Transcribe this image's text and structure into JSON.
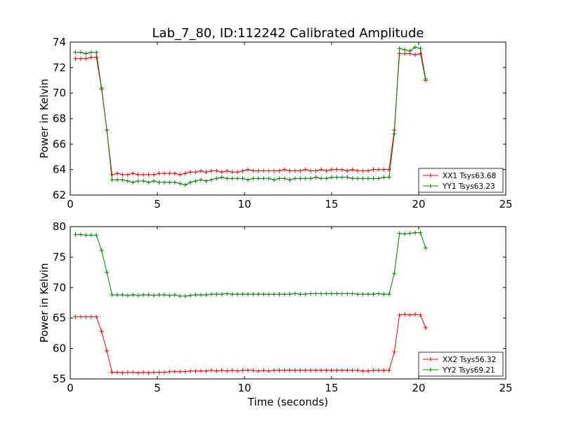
{
  "figure": {
    "title": "Lab_7_80, ID:112242 Calibrated Amplitude",
    "xlabel": "Time (seconds)"
  },
  "chart_data": [
    {
      "type": "line",
      "ylabel": "Power in Kelvin",
      "xlim": [
        0,
        25
      ],
      "ylim": [
        62,
        74
      ],
      "xticks": [
        0,
        5,
        10,
        15,
        20,
        25
      ],
      "yticks": [
        62,
        64,
        66,
        68,
        70,
        72,
        74
      ],
      "legend": "lower-right",
      "series": [
        {
          "name": "XX1 Tsys63.68",
          "color": "#ff0000",
          "x": [
            0.3,
            0.6,
            0.9,
            1.2,
            1.5,
            1.8,
            2.1,
            2.4,
            2.7,
            3.0,
            3.3,
            3.6,
            3.9,
            4.2,
            4.5,
            4.8,
            5.1,
            5.4,
            5.7,
            6.0,
            6.3,
            6.6,
            6.9,
            7.2,
            7.5,
            7.8,
            8.1,
            8.4,
            8.7,
            9.0,
            9.3,
            9.6,
            9.9,
            10.2,
            10.5,
            10.8,
            11.1,
            11.4,
            11.7,
            12.0,
            12.3,
            12.6,
            12.9,
            13.2,
            13.5,
            13.8,
            14.1,
            14.4,
            14.7,
            15.0,
            15.3,
            15.6,
            15.9,
            16.2,
            16.5,
            16.8,
            17.1,
            17.4,
            17.7,
            18.0,
            18.3,
            18.6,
            18.9,
            19.2,
            19.5,
            19.8,
            20.1,
            20.4
          ],
          "values": [
            72.7,
            72.7,
            72.7,
            72.8,
            72.8,
            70.3,
            67.1,
            63.6,
            63.7,
            63.6,
            63.6,
            63.7,
            63.6,
            63.6,
            63.6,
            63.6,
            63.7,
            63.7,
            63.7,
            63.7,
            63.6,
            63.7,
            63.8,
            63.8,
            63.9,
            63.8,
            63.9,
            63.9,
            63.8,
            63.9,
            63.8,
            63.8,
            63.9,
            64.0,
            63.9,
            63.9,
            63.9,
            63.9,
            63.9,
            63.9,
            64.0,
            63.9,
            63.9,
            63.9,
            64.0,
            63.9,
            63.9,
            64.0,
            63.9,
            64.0,
            64.0,
            64.0,
            63.9,
            64.0,
            63.9,
            63.9,
            63.9,
            64.0,
            64.0,
            64.0,
            64.0,
            67.1,
            73.1,
            73.1,
            73.1,
            73.0,
            73.1,
            71.0
          ]
        },
        {
          "name": "YY1 Tsys63.23",
          "color": "#008000",
          "x": [
            0.3,
            0.6,
            0.9,
            1.2,
            1.5,
            1.8,
            2.1,
            2.4,
            2.7,
            3.0,
            3.3,
            3.6,
            3.9,
            4.2,
            4.5,
            4.8,
            5.1,
            5.4,
            5.7,
            6.0,
            6.3,
            6.6,
            6.9,
            7.2,
            7.5,
            7.8,
            8.1,
            8.4,
            8.7,
            9.0,
            9.3,
            9.6,
            9.9,
            10.2,
            10.5,
            10.8,
            11.1,
            11.4,
            11.7,
            12.0,
            12.3,
            12.6,
            12.9,
            13.2,
            13.5,
            13.8,
            14.1,
            14.4,
            14.7,
            15.0,
            15.3,
            15.6,
            15.9,
            16.2,
            16.5,
            16.8,
            17.1,
            17.4,
            17.7,
            18.0,
            18.3,
            18.6,
            18.9,
            19.2,
            19.5,
            19.8,
            20.1,
            20.4
          ],
          "values": [
            73.2,
            73.2,
            73.1,
            73.2,
            73.2,
            70.4,
            67.1,
            63.2,
            63.2,
            63.2,
            63.1,
            63.0,
            63.1,
            63.1,
            63.0,
            63.1,
            63.0,
            63.0,
            63.0,
            63.0,
            62.9,
            62.8,
            63.0,
            63.1,
            63.2,
            63.1,
            63.2,
            63.3,
            63.4,
            63.3,
            63.3,
            63.3,
            63.3,
            63.2,
            63.3,
            63.3,
            63.3,
            63.3,
            63.2,
            63.3,
            63.3,
            63.2,
            63.3,
            63.3,
            63.3,
            63.3,
            63.4,
            63.3,
            63.3,
            63.4,
            63.4,
            63.4,
            63.4,
            63.3,
            63.3,
            63.3,
            63.3,
            63.3,
            63.3,
            63.4,
            63.4,
            66.8,
            73.5,
            73.4,
            73.3,
            73.6,
            73.5,
            71.1
          ]
        }
      ]
    },
    {
      "type": "line",
      "ylabel": "Power in Kelvin",
      "xlim": [
        0,
        25
      ],
      "ylim": [
        55,
        80
      ],
      "xticks": [
        0,
        5,
        10,
        15,
        20,
        25
      ],
      "yticks": [
        55,
        60,
        65,
        70,
        75,
        80
      ],
      "legend": "lower-right",
      "series": [
        {
          "name": "XX2 Tsys56.32",
          "color": "#ff0000",
          "x": [
            0.3,
            0.6,
            0.9,
            1.2,
            1.5,
            1.8,
            2.1,
            2.4,
            2.7,
            3.0,
            3.3,
            3.6,
            3.9,
            4.2,
            4.5,
            4.8,
            5.1,
            5.4,
            5.7,
            6.0,
            6.3,
            6.6,
            6.9,
            7.2,
            7.5,
            7.8,
            8.1,
            8.4,
            8.7,
            9.0,
            9.3,
            9.6,
            9.9,
            10.2,
            10.5,
            10.8,
            11.1,
            11.4,
            11.7,
            12.0,
            12.3,
            12.6,
            12.9,
            13.2,
            13.5,
            13.8,
            14.1,
            14.4,
            14.7,
            15.0,
            15.3,
            15.6,
            15.9,
            16.2,
            16.5,
            16.8,
            17.1,
            17.4,
            17.7,
            18.0,
            18.3,
            18.6,
            18.9,
            19.2,
            19.5,
            19.8,
            20.1,
            20.4
          ],
          "values": [
            65.2,
            65.2,
            65.2,
            65.2,
            65.2,
            62.8,
            59.6,
            56.1,
            56.1,
            56.0,
            56.1,
            56.1,
            56.0,
            56.1,
            56.0,
            56.1,
            56.1,
            56.1,
            56.2,
            56.2,
            56.2,
            56.2,
            56.3,
            56.3,
            56.3,
            56.3,
            56.4,
            56.3,
            56.4,
            56.3,
            56.4,
            56.3,
            56.4,
            56.4,
            56.4,
            56.3,
            56.4,
            56.3,
            56.4,
            56.4,
            56.4,
            56.4,
            56.4,
            56.4,
            56.4,
            56.4,
            56.4,
            56.4,
            56.4,
            56.4,
            56.4,
            56.4,
            56.4,
            56.4,
            56.4,
            56.3,
            56.3,
            56.4,
            56.4,
            56.4,
            56.4,
            59.4,
            65.5,
            65.6,
            65.5,
            65.6,
            65.5,
            63.4
          ]
        },
        {
          "name": "YY2 Tsys69.21",
          "color": "#008000",
          "x": [
            0.3,
            0.6,
            0.9,
            1.2,
            1.5,
            1.8,
            2.1,
            2.4,
            2.7,
            3.0,
            3.3,
            3.6,
            3.9,
            4.2,
            4.5,
            4.8,
            5.1,
            5.4,
            5.7,
            6.0,
            6.3,
            6.6,
            6.9,
            7.2,
            7.5,
            7.8,
            8.1,
            8.4,
            8.7,
            9.0,
            9.3,
            9.6,
            9.9,
            10.2,
            10.5,
            10.8,
            11.1,
            11.4,
            11.7,
            12.0,
            12.3,
            12.6,
            12.9,
            13.2,
            13.5,
            13.8,
            14.1,
            14.4,
            14.7,
            15.0,
            15.3,
            15.6,
            15.9,
            16.2,
            16.5,
            16.8,
            17.1,
            17.4,
            17.7,
            18.0,
            18.3,
            18.6,
            18.9,
            19.2,
            19.5,
            19.8,
            20.1,
            20.4
          ],
          "values": [
            78.7,
            78.7,
            78.6,
            78.6,
            78.6,
            76.1,
            72.5,
            68.8,
            68.8,
            68.8,
            68.7,
            68.8,
            68.7,
            68.8,
            68.8,
            68.7,
            68.8,
            68.8,
            68.7,
            68.8,
            68.6,
            68.6,
            68.7,
            68.8,
            68.8,
            68.8,
            68.9,
            68.9,
            68.9,
            69.0,
            68.9,
            68.9,
            68.9,
            68.9,
            68.9,
            68.9,
            68.9,
            68.9,
            68.9,
            68.9,
            68.9,
            68.9,
            69.0,
            68.9,
            68.9,
            69.0,
            69.0,
            69.0,
            69.0,
            69.0,
            69.0,
            69.0,
            69.0,
            69.0,
            68.9,
            68.9,
            68.9,
            68.9,
            69.0,
            68.9,
            68.9,
            72.3,
            78.9,
            78.8,
            78.9,
            79.0,
            79.0,
            76.5
          ]
        }
      ]
    }
  ]
}
